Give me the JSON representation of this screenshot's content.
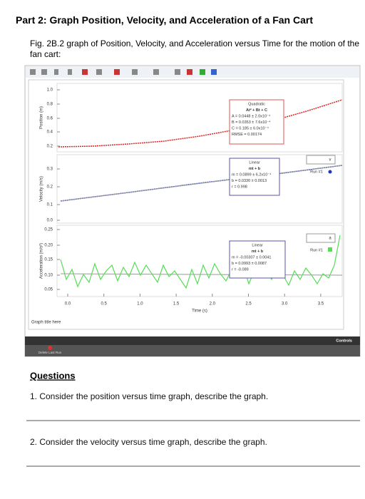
{
  "header": {
    "title": "Part 2: Graph Position, Velocity, and Acceleration of a Fan Cart",
    "caption": "Fig. 2B.2 graph of Position, Velocity, and Acceleration versus Time for the motion of the fan cart:"
  },
  "graph": {
    "panels": [
      {
        "ylabel": "Position (m)",
        "yticks": [
          "1.0",
          "0.8",
          "0.6",
          "0.4",
          "0.2"
        ],
        "fit": [
          "Quadratic",
          "At² + Bt + C",
          "A = 0.0448 ± 2.0x10⁻⁴",
          "B = 0.0353 ± 7.6x10⁻⁴",
          "C = 0.185 ± 6.0x10⁻⁴",
          "RMSE = 0.00174"
        ]
      },
      {
        "ylabel": "Velocity (m/s)",
        "yticks": [
          "0.3",
          "0.2",
          "0.1",
          "0.0"
        ],
        "fit": [
          "Linear",
          "mt + b",
          "m = 0.0899 ± 6.2x10⁻⁴",
          "b = 0.0330 ± 0.0013",
          "r = 0.998"
        ],
        "legend": {
          "symbol": "v",
          "run": "Run #1"
        }
      },
      {
        "ylabel": "Acceleration (m/s²)",
        "yticks": [
          "0.25",
          "0.20",
          "0.15",
          "0.10",
          "0.05"
        ],
        "fit": [
          "Linear",
          "mt + b",
          "m = -0.00307 ± 0.0041",
          "b = 0.0993 ± 0.0087",
          "r = -0.089"
        ],
        "legend": {
          "symbol": "a",
          "run": "Run #1"
        }
      }
    ],
    "xticks": [
      "0.0",
      "0.5",
      "1.0",
      "1.5",
      "2.0",
      "2.5",
      "3.0",
      "3.5"
    ],
    "xlabel": "Time (s)",
    "graph_title": "Graph title here",
    "controls": "Controls",
    "delete_button": "Delete Last Run"
  },
  "questions": {
    "heading": "Questions",
    "items": [
      "1. Consider the position versus time graph, describe the graph.",
      "2. Consider the velocity versus time graph, describe the graph."
    ]
  }
}
